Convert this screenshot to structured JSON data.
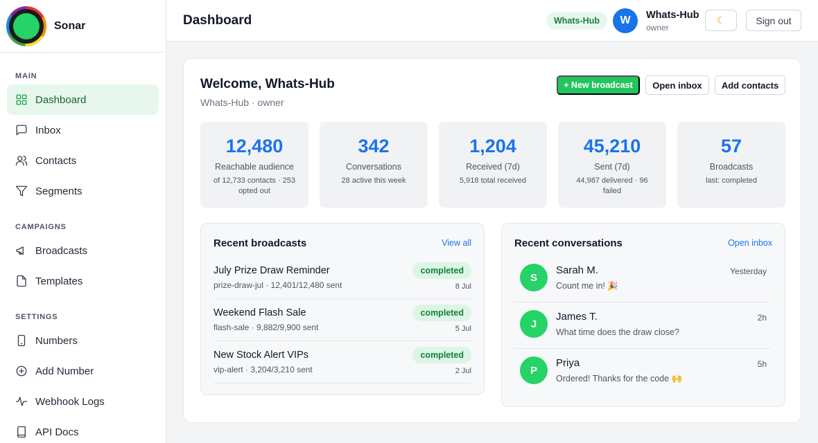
{
  "brand": {
    "name": "Sonar"
  },
  "sidebar": {
    "sections": [
      {
        "title": "MAIN",
        "items": [
          {
            "label": "Dashboard",
            "icon": "grid-icon",
            "active": true
          },
          {
            "label": "Inbox",
            "icon": "chat-icon"
          },
          {
            "label": "Contacts",
            "icon": "users-icon"
          },
          {
            "label": "Segments",
            "icon": "filter-icon"
          }
        ]
      },
      {
        "title": "CAMPAIGNS",
        "items": [
          {
            "label": "Broadcasts",
            "icon": "megaphone-icon"
          },
          {
            "label": "Templates",
            "icon": "file-icon"
          }
        ]
      },
      {
        "title": "SETTINGS",
        "items": [
          {
            "label": "Numbers",
            "icon": "phone-icon"
          },
          {
            "label": "Add Number",
            "icon": "plus-circle-icon"
          },
          {
            "label": "Webhook Logs",
            "icon": "activity-icon"
          },
          {
            "label": "API Docs",
            "icon": "book-icon"
          }
        ]
      }
    ]
  },
  "header": {
    "title": "Dashboard",
    "workspace_badge": "Whats-Hub",
    "user": {
      "initial": "W",
      "name": "Whats-Hub",
      "role": "owner"
    },
    "theme_toggle_icon": "☾",
    "signout_label": "Sign out"
  },
  "welcome": {
    "title": "Welcome, Whats-Hub",
    "subtitle": "Whats-Hub · owner",
    "new_broadcast_label": "+ New broadcast",
    "open_inbox_label": "Open inbox",
    "add_contacts_label": "Add contacts"
  },
  "stats": [
    {
      "value": "12,480",
      "label": "Reachable audience",
      "sub": "of 12,733 contacts · 253 opted out"
    },
    {
      "value": "342",
      "label": "Conversations",
      "sub": "28 active this week"
    },
    {
      "value": "1,204",
      "label": "Received (7d)",
      "sub": "5,918 total received"
    },
    {
      "value": "45,210",
      "label": "Sent (7d)",
      "sub": "44,987 delivered · 96 failed"
    },
    {
      "value": "57",
      "label": "Broadcasts",
      "sub": "last: completed"
    }
  ],
  "recent_broadcasts": {
    "title": "Recent broadcasts",
    "link": "View all",
    "items": [
      {
        "name": "July Prize Draw Reminder",
        "meta": "prize-draw-jul · 12,401/12,480 sent",
        "status": "completed",
        "date": "8 Jul"
      },
      {
        "name": "Weekend Flash Sale",
        "meta": "flash-sale · 9,882/9,900 sent",
        "status": "completed",
        "date": "5 Jul"
      },
      {
        "name": "New Stock Alert VIPs",
        "meta": "vip-alert · 3,204/3,210 sent",
        "status": "completed",
        "date": "2 Jul"
      }
    ]
  },
  "recent_conversations": {
    "title": "Recent conversations",
    "link": "Open inbox",
    "items": [
      {
        "initial": "S",
        "name": "Sarah M.",
        "message": "Count me in! 🎉",
        "time": "Yesterday"
      },
      {
        "initial": "J",
        "name": "James T.",
        "message": "What time does the draw close?",
        "time": "2h"
      },
      {
        "initial": "P",
        "name": "Priya",
        "message": "Ordered! Thanks for the code 🙌",
        "time": "5h"
      }
    ]
  },
  "colors": {
    "accent": "#1a73e8",
    "brand_green": "#25d366",
    "primary_button": "#22c55e"
  }
}
